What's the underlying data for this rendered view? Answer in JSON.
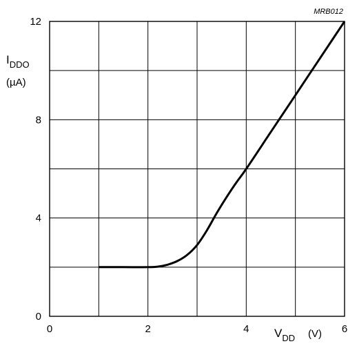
{
  "chart_data": {
    "type": "line",
    "figure_code": "MRB012",
    "ylabel": {
      "main": "I",
      "sub": "DDO",
      "unit": "(µA)"
    },
    "xlabel": {
      "main": "V",
      "sub": "DD",
      "unit": "(V)"
    },
    "xlim": [
      0,
      6
    ],
    "ylim": [
      0,
      12
    ],
    "xticks": [
      0,
      2,
      4,
      6
    ],
    "xtick_labels": [
      "0",
      "2",
      "4",
      "6"
    ],
    "yticks": [
      0,
      4,
      8,
      12
    ],
    "ytick_labels": [
      "0",
      "4",
      "8",
      "12"
    ],
    "x_grid": [
      0,
      1,
      2,
      3,
      4,
      5,
      6
    ],
    "y_grid": [
      0,
      2,
      4,
      6,
      8,
      10,
      12
    ],
    "grid": true,
    "series": [
      {
        "x": [
          1.0,
          1.5,
          2.0,
          2.2,
          2.4,
          2.6,
          2.8,
          3.0,
          3.2,
          3.4,
          3.6,
          3.8,
          4.0,
          4.5,
          5.0,
          5.5,
          6.0
        ],
        "y": [
          2.0,
          2.0,
          2.0,
          2.02,
          2.1,
          2.25,
          2.5,
          2.9,
          3.5,
          4.2,
          4.85,
          5.45,
          6.0,
          7.5,
          9.0,
          10.5,
          12.0
        ]
      }
    ]
  }
}
